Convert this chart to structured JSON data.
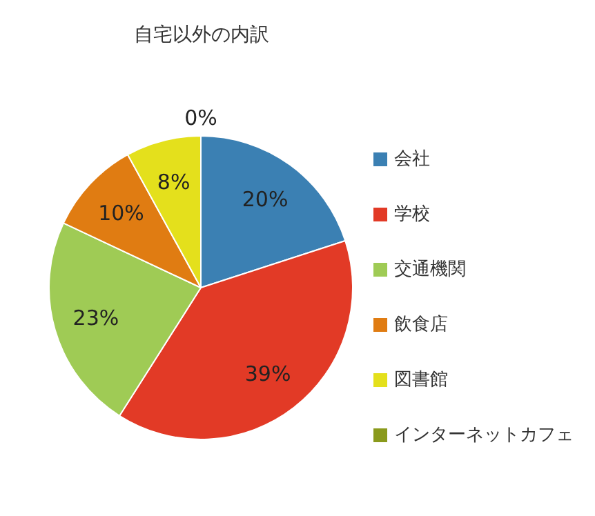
{
  "chart_data": {
    "type": "pie",
    "title": "自宅以外の内訳",
    "categories": [
      "会社",
      "学校",
      "交通機関",
      "飲食店",
      "図書館",
      "インターネットカフェ"
    ],
    "values": [
      20,
      39,
      23,
      10,
      8,
      0
    ],
    "colors": [
      "#3b80b3",
      "#e23a26",
      "#9fcb55",
      "#e07c12",
      "#e4e01c",
      "#8a9a1c"
    ],
    "value_labels": [
      "20%",
      "39%",
      "23%",
      "10%",
      "8%",
      "0%"
    ],
    "legend": "right"
  }
}
